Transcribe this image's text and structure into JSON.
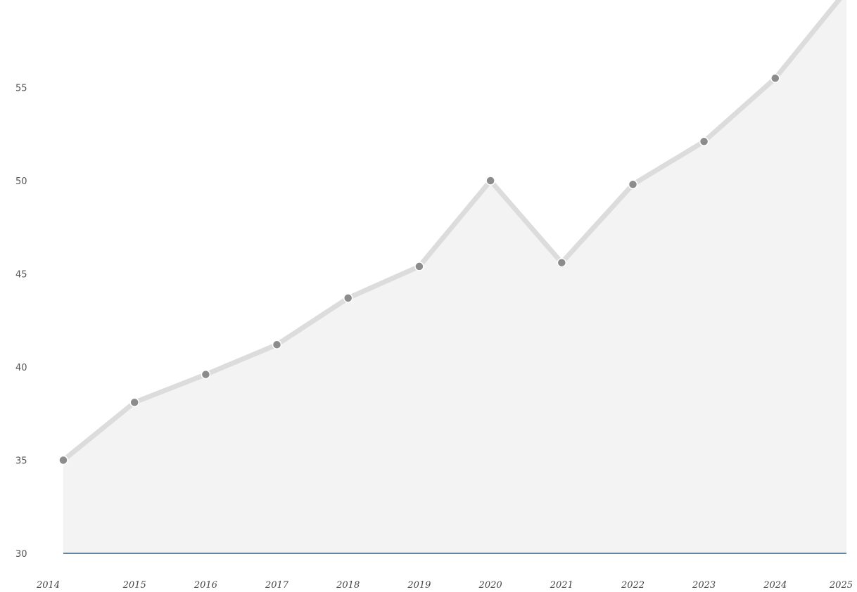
{
  "chart_data": {
    "type": "area",
    "title": "",
    "xlabel": "",
    "ylabel": "",
    "grid": false,
    "categories": [
      "2014",
      "2015",
      "2016",
      "2017",
      "2018",
      "2019",
      "2020",
      "2021",
      "2022",
      "2023",
      "2024",
      "2025"
    ],
    "series": [
      {
        "values": [
          35.0,
          38.1,
          39.6,
          41.2,
          43.7,
          45.4,
          50.0,
          45.6,
          49.8,
          52.1,
          55.5,
          60.2
        ]
      }
    ],
    "y_ticks": [
      "30",
      "35",
      "40",
      "45",
      "50",
      "55"
    ],
    "ylim": [
      30,
      60
    ],
    "colors": {
      "area_fill": "#f3f3f3",
      "line": "#dcdcdc",
      "marker": "#8c8c8c",
      "marker_outline": "#ffffff",
      "baseline": "#2f5f7f"
    }
  }
}
